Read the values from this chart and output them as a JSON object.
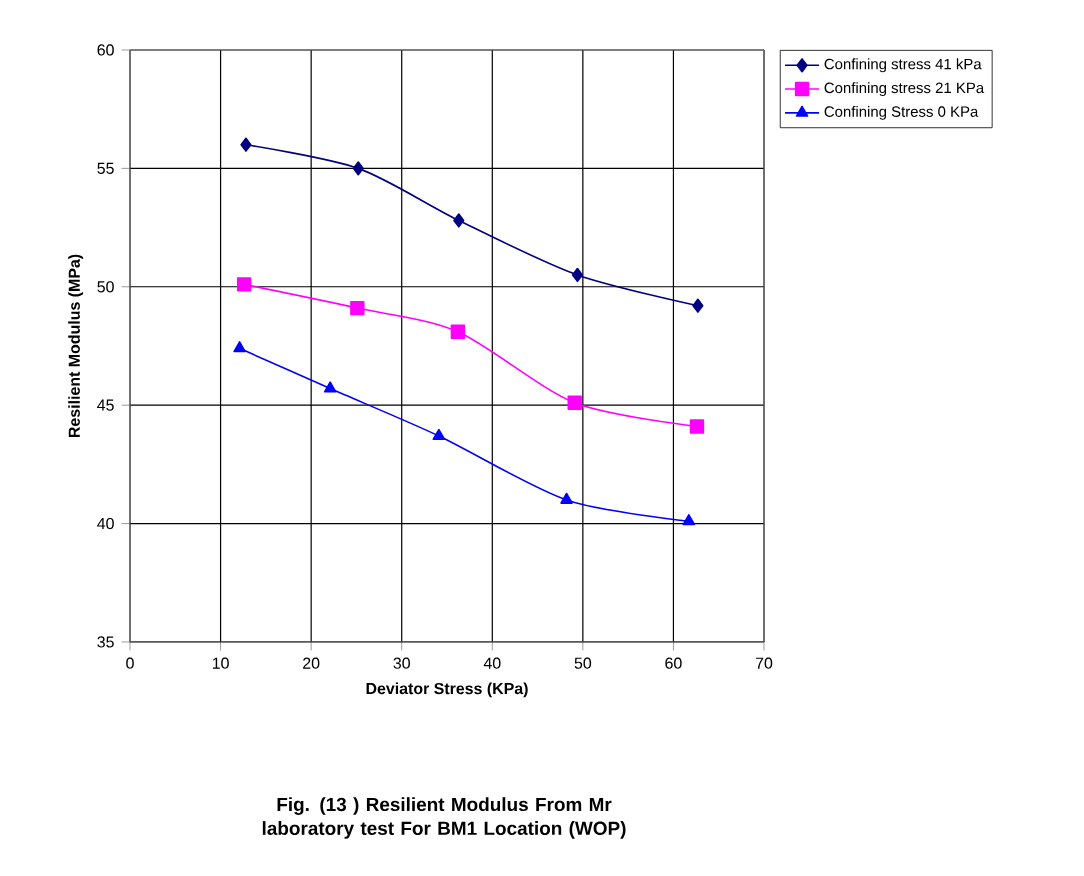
{
  "chart_data": {
    "type": "line",
    "xlabel": "Deviator Stress (KPa)",
    "ylabel": "Resilient Modulus (MPa)",
    "annotations": [
      "Fig. (13 )  Resilient Modulus From Mr laboratory test For  BM1 Location (WOP)"
    ],
    "xlim": [
      0,
      70
    ],
    "ylim": [
      35,
      60
    ],
    "xticks": [
      0,
      10,
      20,
      30,
      40,
      50,
      60,
      70
    ],
    "yticks": [
      35,
      40,
      45,
      50,
      55,
      60
    ],
    "grid": true,
    "legend": "top right",
    "line_style": "solid",
    "series": [
      {
        "name": "Confining stress 41 kPa",
        "color": "#000080",
        "marker": "diamond",
        "x": [
          12.8,
          25.2,
          36.3,
          49.4,
          62.7
        ],
        "values": [
          56,
          55,
          52.8,
          50.5,
          49.2
        ]
      },
      {
        "name": "Confining stress 21 KPa",
        "color": "#ff00ff",
        "marker": "square",
        "x": [
          12.6,
          25.1,
          36.2,
          49.1,
          62.6
        ],
        "values": [
          50.1,
          49.1,
          48.1,
          45.1,
          44.1
        ]
      },
      {
        "name": "Confining Stress 0 KPa",
        "color": "#0000ff",
        "marker": "triangle",
        "x": [
          12.1,
          22.1,
          34.1,
          48.2,
          61.7
        ],
        "values": [
          47.4,
          45.7,
          43.7,
          41.0,
          40.1
        ]
      }
    ]
  }
}
